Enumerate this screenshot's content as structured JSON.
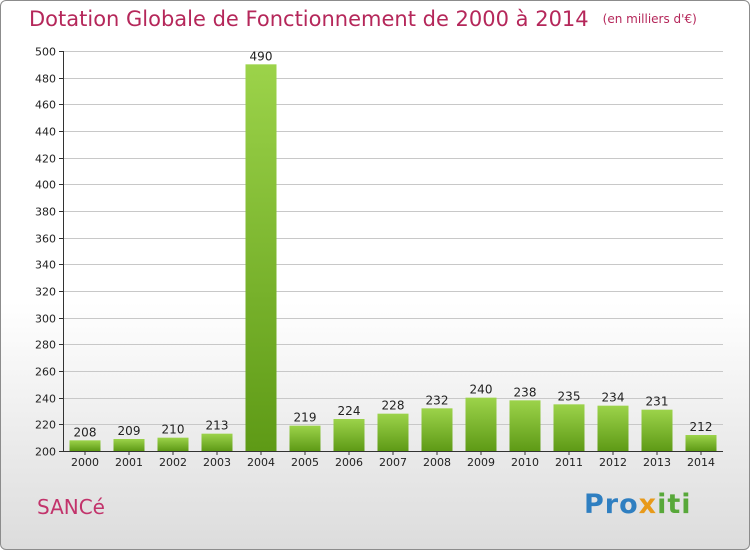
{
  "header": {
    "title": "Dotation Globale de Fonctionnement de 2000 à 2014",
    "subtitle": "(en milliers d'€)"
  },
  "footer": {
    "commune": "SANCé",
    "logo_parts": [
      "Pro",
      "x",
      "iti"
    ]
  },
  "colors": {
    "bar_light": "#9cd34a",
    "bar_dark": "#5e9a16",
    "title": "#b5275a",
    "grid": "#c8c8c8"
  },
  "chart_data": {
    "type": "bar",
    "title": "Dotation Globale de Fonctionnement de 2000 à 2014",
    "subtitle": "(en milliers d'€)",
    "xlabel": "",
    "ylabel": "",
    "categories": [
      "2000",
      "2001",
      "2002",
      "2003",
      "2004",
      "2005",
      "2006",
      "2007",
      "2008",
      "2009",
      "2010",
      "2011",
      "2012",
      "2013",
      "2014"
    ],
    "values": [
      208,
      209,
      210,
      213,
      490,
      219,
      224,
      228,
      232,
      240,
      238,
      235,
      234,
      231,
      212
    ],
    "ylim": [
      200,
      500
    ],
    "yticks": [
      200,
      220,
      240,
      260,
      280,
      300,
      320,
      340,
      360,
      380,
      400,
      420,
      440,
      460,
      480,
      500
    ],
    "grid": true,
    "legend": "none"
  }
}
